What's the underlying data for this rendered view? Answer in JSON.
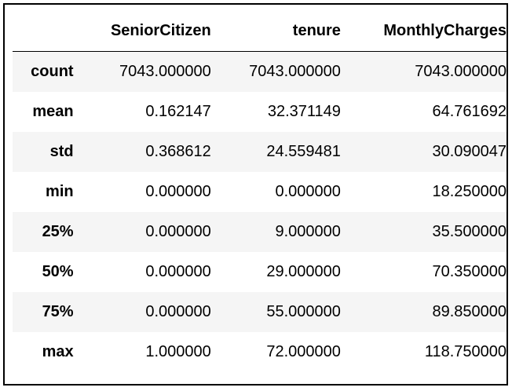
{
  "table": {
    "columns": [
      "",
      "SeniorCitizen",
      "tenure",
      "MonthlyCharges"
    ],
    "rows": [
      {
        "label": "count",
        "values": [
          "7043.000000",
          "7043.000000",
          "7043.000000"
        ]
      },
      {
        "label": "mean",
        "values": [
          "0.162147",
          "32.371149",
          "64.761692"
        ]
      },
      {
        "label": "std",
        "values": [
          "0.368612",
          "24.559481",
          "30.090047"
        ]
      },
      {
        "label": "min",
        "values": [
          "0.000000",
          "0.000000",
          "18.250000"
        ]
      },
      {
        "label": "25%",
        "values": [
          "0.000000",
          "9.000000",
          "35.500000"
        ]
      },
      {
        "label": "50%",
        "values": [
          "0.000000",
          "29.000000",
          "70.350000"
        ]
      },
      {
        "label": "75%",
        "values": [
          "0.000000",
          "55.000000",
          "89.850000"
        ]
      },
      {
        "label": "max",
        "values": [
          "1.000000",
          "72.000000",
          "118.750000"
        ]
      }
    ]
  },
  "colors": {
    "border": "#000000",
    "row_stripe": "#f5f5f5",
    "background": "#ffffff"
  }
}
